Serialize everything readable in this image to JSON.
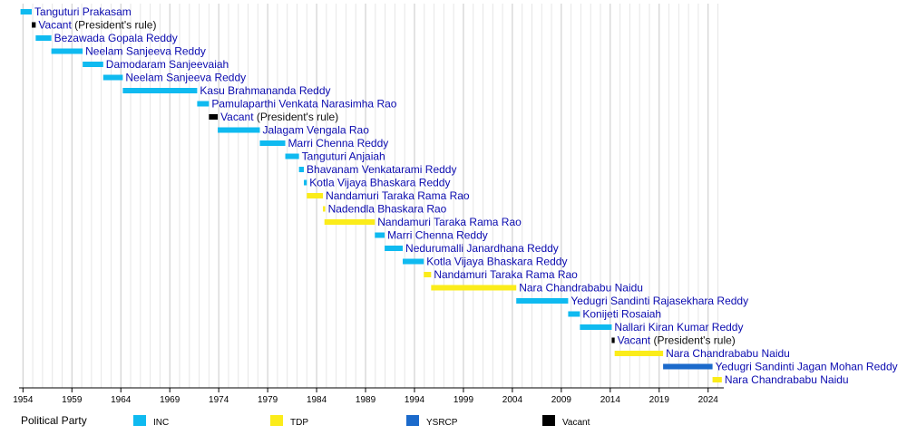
{
  "chart_data": {
    "type": "timeline",
    "title": "",
    "xlabel": "",
    "ylabel": "",
    "xlim": [
      1953.6,
      2025.6
    ],
    "grid": true,
    "x_ticks": [
      1954,
      1959,
      1964,
      1969,
      1974,
      1979,
      1984,
      1989,
      1994,
      1999,
      2004,
      2009,
      2014,
      2019,
      2024
    ],
    "party_colors": {
      "INC": "#0fbaf0",
      "TDP": "#fbec1a",
      "YSRCP": "#1b6acb",
      "Vacant": "#000000"
    },
    "legend": {
      "title": "Political Party",
      "items": [
        {
          "party": "INC",
          "label": "INC"
        },
        {
          "party": "TDP",
          "label": "TDP"
        },
        {
          "party": "YSRCP",
          "label": "YSRCP"
        },
        {
          "party": "Vacant",
          "label": "Vacant"
        }
      ]
    },
    "terms": [
      {
        "name": "Tanguturi Prakasam",
        "note": "",
        "party": "INC",
        "start": 1953.75,
        "end": 1954.9
      },
      {
        "name": "Vacant",
        "note": " (President's rule)",
        "party": "Vacant",
        "start": 1954.9,
        "end": 1955.3
      },
      {
        "name": "Bezawada Gopala Reddy",
        "note": "",
        "party": "INC",
        "start": 1955.3,
        "end": 1956.9
      },
      {
        "name": "Neelam Sanjeeva Reddy",
        "note": "",
        "party": "INC",
        "start": 1956.9,
        "end": 1960.1
      },
      {
        "name": "Damodaram Sanjeevaiah",
        "note": "",
        "party": "INC",
        "start": 1960.1,
        "end": 1962.2
      },
      {
        "name": "Neelam Sanjeeva Reddy",
        "note": "",
        "party": "INC",
        "start": 1962.2,
        "end": 1964.2
      },
      {
        "name": "Kasu Brahmananda Reddy",
        "note": "",
        "party": "INC",
        "start": 1964.2,
        "end": 1971.8
      },
      {
        "name": "Pamulaparthi Venkata Narasimha Rao",
        "note": "",
        "party": "INC",
        "start": 1971.8,
        "end": 1973.0
      },
      {
        "name": "Vacant",
        "note": " (President's rule)",
        "party": "Vacant",
        "start": 1973.0,
        "end": 1973.9
      },
      {
        "name": "Jalagam Vengala Rao",
        "note": "",
        "party": "INC",
        "start": 1973.9,
        "end": 1978.2
      },
      {
        "name": "Marri Chenna Reddy",
        "note": "",
        "party": "INC",
        "start": 1978.2,
        "end": 1980.8
      },
      {
        "name": "Tanguturi Anjaiah",
        "note": "",
        "party": "INC",
        "start": 1980.8,
        "end": 1982.2
      },
      {
        "name": "Bhavanam Venkatarami Reddy",
        "note": "",
        "party": "INC",
        "start": 1982.2,
        "end": 1982.7
      },
      {
        "name": "Kotla Vijaya Bhaskara Reddy",
        "note": "",
        "party": "INC",
        "start": 1982.7,
        "end": 1983.0
      },
      {
        "name": "Nandamuri Taraka Rama Rao",
        "note": "",
        "party": "TDP",
        "start": 1983.0,
        "end": 1984.65
      },
      {
        "name": "Nadendla Bhaskara Rao",
        "note": "",
        "party": "TDP",
        "start": 1984.65,
        "end": 1984.8
      },
      {
        "name": "Nandamuri Taraka Rama Rao",
        "note": "",
        "party": "TDP",
        "start": 1984.8,
        "end": 1989.95
      },
      {
        "name": "Marri Chenna Reddy",
        "note": "",
        "party": "INC",
        "start": 1989.95,
        "end": 1990.95
      },
      {
        "name": "Nedurumalli Janardhana Reddy",
        "note": "",
        "party": "INC",
        "start": 1990.95,
        "end": 1992.8
      },
      {
        "name": "Kotla Vijaya Bhaskara Reddy",
        "note": "",
        "party": "INC",
        "start": 1992.8,
        "end": 1994.95
      },
      {
        "name": "Nandamuri Taraka Rama Rao",
        "note": "",
        "party": "TDP",
        "start": 1994.95,
        "end": 1995.7
      },
      {
        "name": "Nara Chandrababu Naidu",
        "note": "",
        "party": "TDP",
        "start": 1995.7,
        "end": 2004.4
      },
      {
        "name": "Yedugri Sandinti Rajasekhara Reddy",
        "note": "",
        "party": "INC",
        "start": 2004.4,
        "end": 2009.7
      },
      {
        "name": "Konijeti Rosaiah",
        "note": "",
        "party": "INC",
        "start": 2009.7,
        "end": 2010.9
      },
      {
        "name": "Nallari Kiran Kumar Reddy",
        "note": "",
        "party": "INC",
        "start": 2010.9,
        "end": 2014.15
      },
      {
        "name": "Vacant",
        "note": " (President's rule)",
        "party": "Vacant",
        "start": 2014.15,
        "end": 2014.45
      },
      {
        "name": "Nara Chandrababu Naidu",
        "note": "",
        "party": "TDP",
        "start": 2014.45,
        "end": 2019.4
      },
      {
        "name": "Yedugri Sandinti Jagan Mohan Reddy",
        "note": "",
        "party": "YSRCP",
        "start": 2019.4,
        "end": 2024.45
      },
      {
        "name": "Nara Chandrababu Naidu",
        "note": "",
        "party": "TDP",
        "start": 2024.45,
        "end": 2025.4
      }
    ]
  }
}
